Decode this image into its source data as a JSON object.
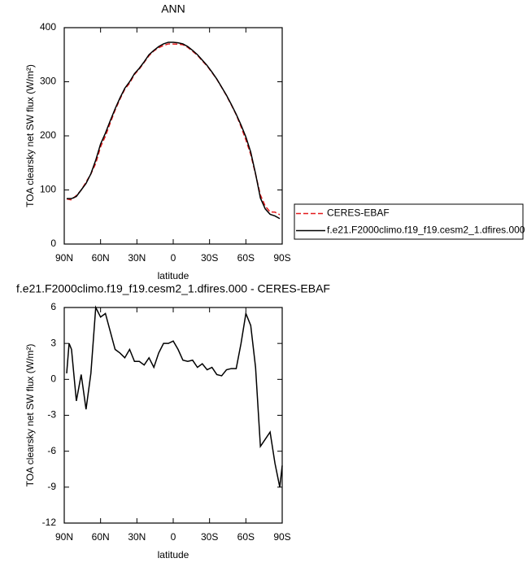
{
  "chart_data": [
    {
      "type": "line",
      "title": "ANN",
      "x_label": "latitude",
      "y_label": "TOA clearsky net SW flux (W/m²)",
      "x": [
        88,
        84,
        80,
        76,
        72,
        68,
        64,
        60,
        56,
        52,
        48,
        44,
        40,
        36,
        32,
        28,
        24,
        20,
        16,
        12,
        8,
        4,
        0,
        -4,
        -8,
        -12,
        -16,
        -20,
        -24,
        -28,
        -32,
        -36,
        -40,
        -44,
        -48,
        -52,
        -56,
        -60,
        -64,
        -68,
        -72,
        -76,
        -80,
        -84,
        -88
      ],
      "xlim": [
        90,
        -90
      ],
      "xticks": [
        {
          "value": 90,
          "label": "90N"
        },
        {
          "value": 60,
          "label": "60N"
        },
        {
          "value": 30,
          "label": "30N"
        },
        0,
        {
          "value": -30,
          "label": "30S"
        },
        {
          "value": -60,
          "label": "60S"
        },
        {
          "value": -90,
          "label": "90S"
        }
      ],
      "ylim": [
        0,
        400
      ],
      "yticks": [
        0,
        100,
        200,
        300,
        400
      ],
      "series": [
        {
          "name": "CERES-EBAF",
          "color": "#e31a1c",
          "dashed": true,
          "values": [
            83.5,
            81.5,
            89.8,
            99.6,
            114.5,
            129.5,
            149,
            179.8,
            199.5,
            224,
            247.5,
            267.8,
            286.2,
            297.5,
            313.5,
            323.5,
            335.8,
            348.2,
            357,
            362.8,
            367,
            370,
            369.8,
            369.5,
            368.4,
            363.5,
            356.4,
            349,
            338.7,
            329.2,
            317,
            304.6,
            289.7,
            274.2,
            257.1,
            239.1,
            217,
            192.5,
            165.5,
            129,
            90.6,
            70,
            59.4,
            59,
            54.2
          ]
        },
        {
          "name": "f.e21.F2000climo.f19_f19.cesm2_1.dfires.000",
          "color": "#000000",
          "values": [
            84,
            84,
            88,
            100,
            112,
            130,
            155,
            185,
            205,
            228,
            250,
            270,
            288,
            300,
            315,
            325,
            337,
            350,
            358,
            365,
            370,
            373,
            373,
            372,
            370,
            365,
            358,
            350,
            340,
            330,
            318,
            305,
            290,
            275,
            258,
            240,
            220,
            198,
            170,
            130,
            85,
            65,
            55,
            52,
            47
          ]
        }
      ]
    },
    {
      "type": "line",
      "title": "f.e21.F2000climo.f19_f19.cesm2_1.dfires.000 - CERES-EBAF",
      "x_label": "latitude",
      "y_label": "TOA clearsky net SW flux (W/m²)",
      "x": [
        88,
        86,
        84,
        80,
        76,
        72,
        68,
        64,
        60,
        56,
        52,
        48,
        44,
        40,
        36,
        32,
        28,
        24,
        20,
        16,
        12,
        8,
        4,
        0,
        -4,
        -8,
        -12,
        -16,
        -20,
        -24,
        -28,
        -32,
        -36,
        -40,
        -44,
        -48,
        -52,
        -56,
        -60,
        -64,
        -68,
        -72,
        -76,
        -80,
        -84,
        -88,
        -90
      ],
      "xlim": [
        90,
        -90
      ],
      "xticks": [
        {
          "value": 90,
          "label": "90N"
        },
        {
          "value": 60,
          "label": "60N"
        },
        {
          "value": 30,
          "label": "30N"
        },
        0,
        {
          "value": -30,
          "label": "30S"
        },
        {
          "value": -60,
          "label": "60S"
        },
        {
          "value": -90,
          "label": "90S"
        }
      ],
      "ylim": [
        -12,
        6
      ],
      "yticks": [
        -12,
        -9,
        -6,
        -3,
        0,
        3,
        6
      ],
      "series": [
        {
          "color": "#000000",
          "values": [
            0.5,
            3,
            2.5,
            -1.8,
            0.4,
            -2.5,
            0.5,
            6,
            5.2,
            5.5,
            4,
            2.5,
            2.2,
            1.8,
            2.5,
            1.5,
            1.5,
            1.2,
            1.8,
            1,
            2.2,
            3,
            3,
            3.2,
            2.5,
            1.6,
            1.5,
            1.6,
            1,
            1.3,
            0.8,
            1,
            0.4,
            0.3,
            0.8,
            0.9,
            0.9,
            3,
            5.5,
            4.5,
            1,
            -5.6,
            -5,
            -4.4,
            -7,
            -9,
            -7.2
          ]
        }
      ]
    }
  ]
}
